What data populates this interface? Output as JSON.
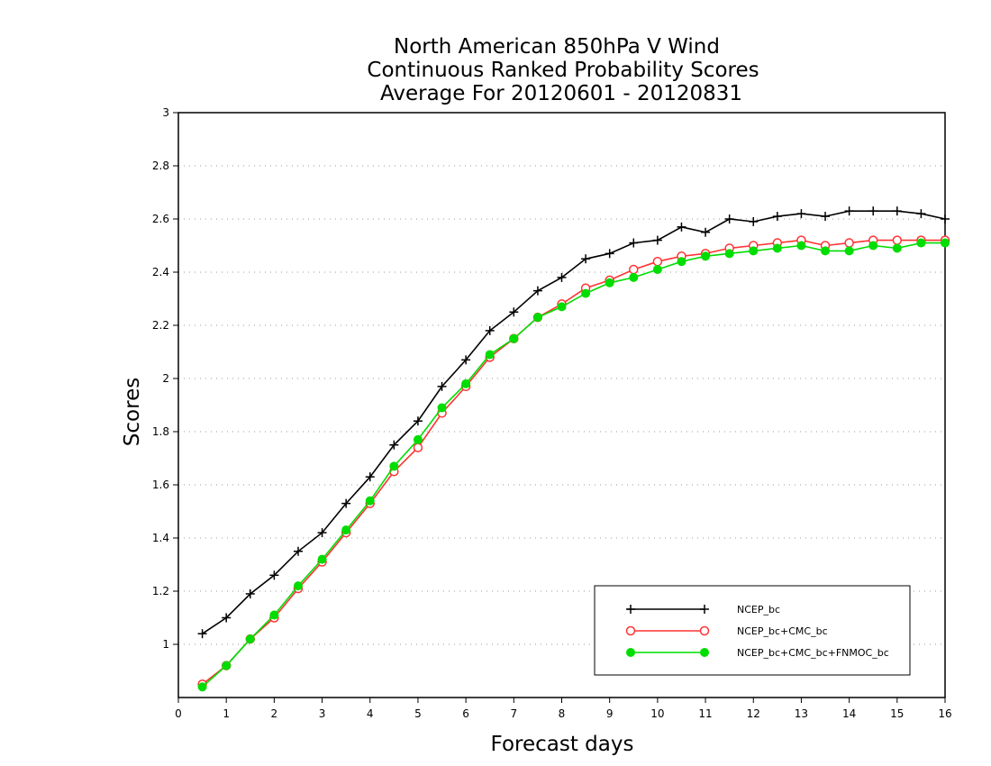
{
  "chart_data": {
    "type": "line",
    "title_lines": [
      "North American 850hPa V Wind",
      "Continuous Ranked Probability Scores",
      "Average For 20120601 - 20120831"
    ],
    "xlabel": "Forecast days",
    "ylabel": "Scores",
    "xlim": [
      0,
      16
    ],
    "ylim": [
      0.8,
      3
    ],
    "x_ticks": [
      0,
      1,
      2,
      3,
      4,
      5,
      6,
      7,
      8,
      9,
      10,
      11,
      12,
      13,
      14,
      15,
      16
    ],
    "y_ticks": [
      1,
      1.2,
      1.4,
      1.6,
      1.8,
      2,
      2.2,
      2.4,
      2.6,
      2.8,
      3
    ],
    "y_tick_labels": [
      "1",
      "1.2",
      "1.4",
      "1.6",
      "1.8",
      "2",
      "2.2",
      "2.4",
      "2.6",
      "2.8",
      "3"
    ],
    "grid": "horizontal dotted",
    "legend_position": "bottom-right",
    "x": [
      0.5,
      1,
      1.5,
      2,
      2.5,
      3,
      3.5,
      4,
      4.5,
      5,
      5.5,
      6,
      6.5,
      7,
      7.5,
      8,
      8.5,
      9,
      9.5,
      10,
      10.5,
      11,
      11.5,
      12,
      12.5,
      13,
      13.5,
      14,
      14.5,
      15,
      15.5,
      16
    ],
    "series": [
      {
        "name": "NCEP_bc",
        "color": "#000000",
        "marker": "plus",
        "values": [
          1.04,
          1.1,
          1.19,
          1.26,
          1.35,
          1.42,
          1.53,
          1.63,
          1.75,
          1.84,
          1.97,
          2.07,
          2.18,
          2.25,
          2.33,
          2.38,
          2.45,
          2.47,
          2.51,
          2.52,
          2.57,
          2.55,
          2.6,
          2.59,
          2.61,
          2.62,
          2.61,
          2.63,
          2.63,
          2.63,
          2.62,
          2.6
        ]
      },
      {
        "name": "NCEP_bc+CMC_bc",
        "color": "#ff3333",
        "marker": "open-circle",
        "values": [
          0.85,
          0.92,
          1.02,
          1.1,
          1.21,
          1.31,
          1.42,
          1.53,
          1.65,
          1.74,
          1.87,
          1.97,
          2.08,
          2.15,
          2.23,
          2.28,
          2.34,
          2.37,
          2.41,
          2.44,
          2.46,
          2.47,
          2.49,
          2.5,
          2.51,
          2.52,
          2.5,
          2.51,
          2.52,
          2.52,
          2.52,
          2.52
        ]
      },
      {
        "name": "NCEP_bc+CMC_bc+FNMOC_bc",
        "color": "#00dd00",
        "marker": "filled-circle",
        "values": [
          0.84,
          0.92,
          1.02,
          1.11,
          1.22,
          1.32,
          1.43,
          1.54,
          1.67,
          1.77,
          1.89,
          1.98,
          2.09,
          2.15,
          2.23,
          2.27,
          2.32,
          2.36,
          2.38,
          2.41,
          2.44,
          2.46,
          2.47,
          2.48,
          2.49,
          2.5,
          2.48,
          2.48,
          2.5,
          2.49,
          2.51,
          2.51
        ]
      }
    ]
  }
}
